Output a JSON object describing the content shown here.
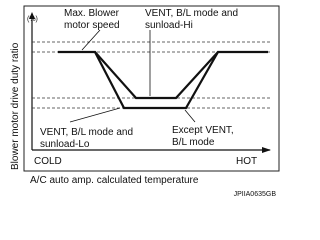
{
  "axis": {
    "y_unit": "(%)",
    "y_label": "Blower motor drive duty ratio",
    "x_left": "COLD",
    "x_right": "HOT",
    "x_label": "A/C auto amp. calculated temperature"
  },
  "labels": {
    "max_blower": [
      "Max. Blower",
      "motor speed"
    ],
    "sunload_hi": [
      "VENT, B/L mode and",
      "sunload-Hi"
    ],
    "sunload_lo": [
      "VENT, B/L mode and",
      "sunload-Lo"
    ],
    "except_vent": [
      "Except VENT,",
      "B/L mode"
    ]
  },
  "code": "JPIIA0635GB"
}
